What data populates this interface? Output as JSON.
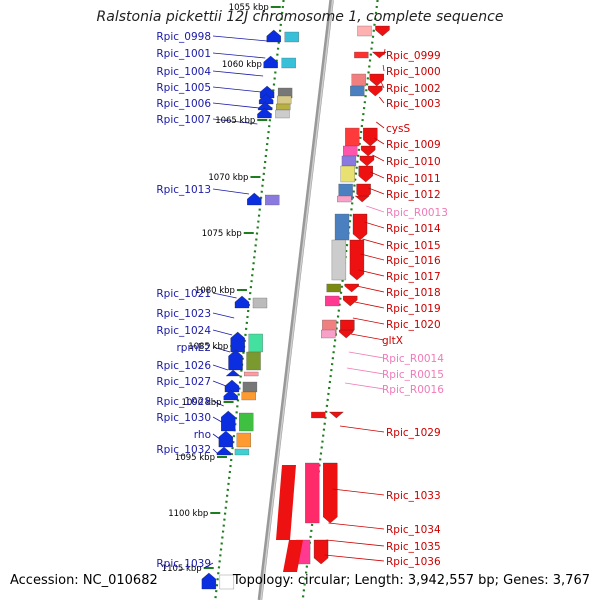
{
  "title": "Ralstonia pickettii 12J chromosome 1, complete sequence",
  "footer": {
    "accession": "Accession: NC_010682",
    "info": "Topology: circular; Length: 3,942,557 bp; Genes: 3,767"
  },
  "colors": {
    "plus_gene": "#0a2ee0",
    "minus_gene": "#ee1111",
    "rna_gene": "#f49ac8",
    "left_label": "#1a1aa8",
    "right_label": "#cc0000",
    "rna_label": "#f07ab8",
    "tick": "#1e7d1e",
    "axis": "#888888"
  },
  "kbp_ticks": [
    "1055 kbp",
    "1060 kbp",
    "1065 kbp",
    "1070 kbp",
    "1075 kbp",
    "1080 kbp",
    "1085 kbp",
    "1090 kbp",
    "1095 kbp",
    "1100 kbp",
    "1105 kbp"
  ],
  "left_genes": [
    "Rpic_0998",
    "Rpic_1001",
    "Rpic_1004",
    "Rpic_1005",
    "Rpic_1006",
    "Rpic_1007",
    "Rpic_1013",
    "Rpic_1021",
    "Rpic_1023",
    "Rpic_1024",
    "rpmE2",
    "Rpic_1026",
    "Rpic_1027",
    "Rpic_1028",
    "Rpic_1030",
    "rho",
    "Rpic_1032",
    "Rpic_1039"
  ],
  "right_genes": [
    "Rpic_0999",
    "Rpic_1000",
    "Rpic_1002",
    "Rpic_1003",
    "cysS",
    "Rpic_1009",
    "Rpic_1010",
    "Rpic_1011",
    "Rpic_1012",
    "Rpic_R0013",
    "Rpic_1014",
    "Rpic_1015",
    "Rpic_1016",
    "Rpic_1017",
    "Rpic_1018",
    "Rpic_1019",
    "Rpic_1020",
    "gltX",
    "Rpic_R0014",
    "Rpic_R0015",
    "Rpic_R0016",
    "Rpic_1029",
    "Rpic_1033",
    "Rpic_1034",
    "Rpic_1035",
    "Rpic_1036"
  ],
  "rna_genes": [
    "Rpic_R0013",
    "Rpic_R0014",
    "Rpic_R0015",
    "Rpic_R0016"
  ]
}
